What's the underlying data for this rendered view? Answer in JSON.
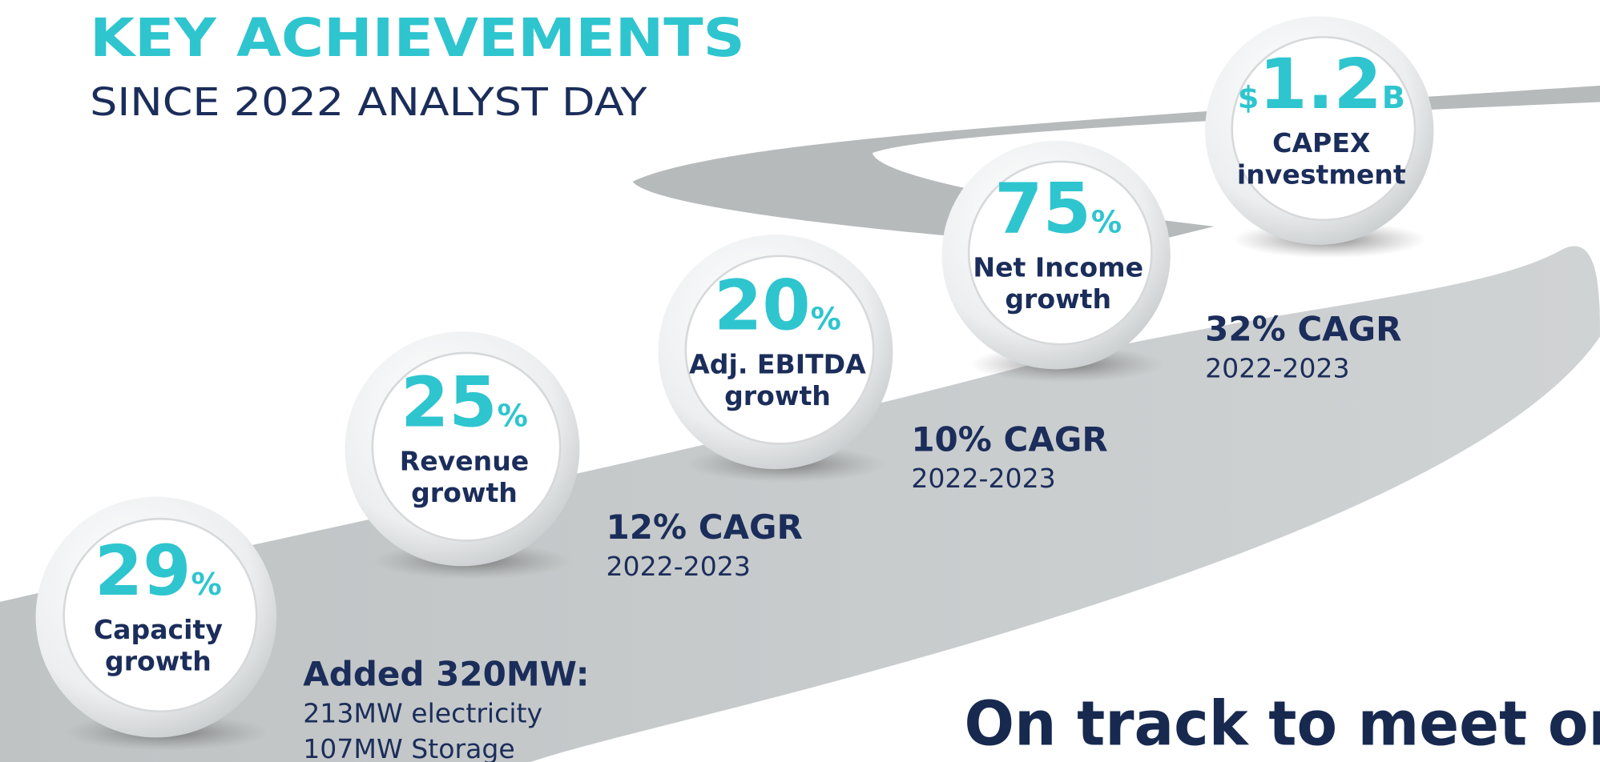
{
  "header": {
    "title": "KEY ACHIEVEMENTS",
    "subtitle": "SINCE 2022 ANALYST DAY"
  },
  "milestones": [
    {
      "value": "29",
      "unit": "%",
      "label": [
        "Capacity",
        "growth"
      ],
      "detail": {
        "title": "Added 320MW:",
        "lines": [
          "213MW electricity",
          "107MW Storage"
        ]
      }
    },
    {
      "value": "25",
      "unit": "%",
      "label": [
        "Revenue",
        "growth"
      ],
      "detail": {
        "title": "12% CAGR",
        "lines": [
          "2022-2023"
        ]
      }
    },
    {
      "value": "20",
      "unit": "%",
      "label": [
        "Adj. EBITDA",
        "growth"
      ],
      "detail": {
        "title": "10% CAGR",
        "lines": [
          "2022-2023"
        ]
      }
    },
    {
      "value": "75",
      "unit": "%",
      "label": [
        "Net Income",
        "growth"
      ],
      "detail": {
        "title": "32% CAGR",
        "lines": [
          "2022-2023"
        ]
      }
    },
    {
      "prefix": "$",
      "value": "1.2",
      "unit": "B",
      "label": [
        "CAPEX",
        "investment"
      ]
    }
  ],
  "footer": "On track to meet or"
}
